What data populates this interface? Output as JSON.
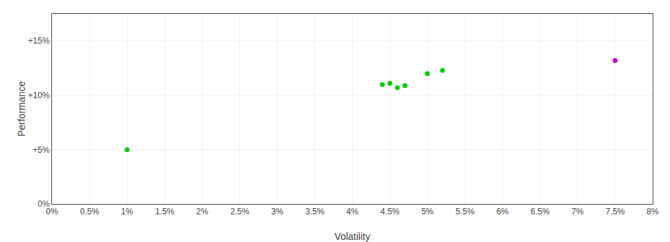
{
  "chart_data": {
    "type": "scatter",
    "xlabel": "Volatility",
    "ylabel": "Performance",
    "marker": "circle",
    "series": [
      {
        "color": "#00cc00",
        "x": [
          0.01,
          0.044,
          0.045,
          0.046,
          0.047,
          0.05,
          0.052
        ],
        "values": [
          0.05,
          0.11,
          0.111,
          0.107,
          0.109,
          0.12,
          0.123
        ]
      },
      {
        "color": "#cc00cc",
        "x": [
          0.075
        ],
        "values": [
          0.132
        ]
      }
    ],
    "xlim": [
      0.0,
      0.08
    ],
    "ylim": [
      0.0,
      0.175
    ],
    "xticks": [
      {
        "value": 0.0,
        "label": "0%"
      },
      {
        "value": 0.005,
        "label": "0.5%"
      },
      {
        "value": 0.01,
        "label": "1%"
      },
      {
        "value": 0.015,
        "label": "1.5%"
      },
      {
        "value": 0.02,
        "label": "2%"
      },
      {
        "value": 0.025,
        "label": "2.5%"
      },
      {
        "value": 0.03,
        "label": "3%"
      },
      {
        "value": 0.035,
        "label": "3.5%"
      },
      {
        "value": 0.04,
        "label": "4%"
      },
      {
        "value": 0.045,
        "label": "4.5%"
      },
      {
        "value": 0.05,
        "label": "5%"
      },
      {
        "value": 0.055,
        "label": "5.5%"
      },
      {
        "value": 0.06,
        "label": "6%"
      },
      {
        "value": 0.065,
        "label": "6.5%"
      },
      {
        "value": 0.07,
        "label": "7%"
      },
      {
        "value": 0.075,
        "label": "7.5%"
      },
      {
        "value": 0.08,
        "label": "8%"
      }
    ],
    "yticks": [
      {
        "value": 0.0,
        "label": "0%"
      },
      {
        "value": 0.05,
        "label": "+5%"
      },
      {
        "value": 0.1,
        "label": "+10%"
      },
      {
        "value": 0.15,
        "label": "+15%"
      }
    ],
    "grid": true
  }
}
